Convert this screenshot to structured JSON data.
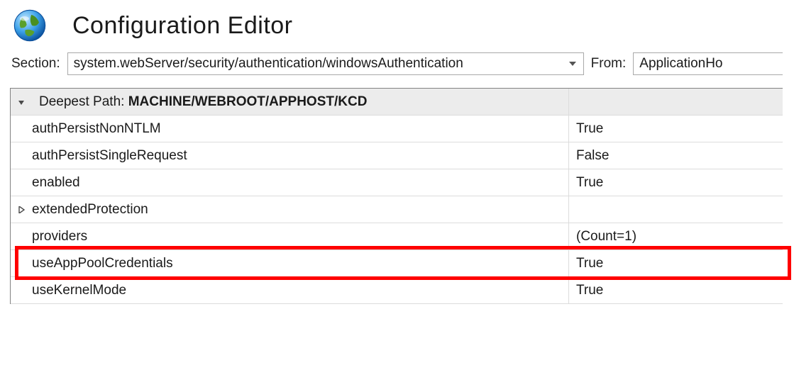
{
  "header": {
    "title": "Configuration Editor"
  },
  "sectionBar": {
    "sectionLabel": "Section:",
    "sectionPath": "system.webServer/security/authentication/windowsAuthentication",
    "fromLabel": "From:",
    "fromValue": "ApplicationHo"
  },
  "grid": {
    "headerPrefix": "Deepest Path: ",
    "headerPath": "MACHINE/WEBROOT/APPHOST/KCD",
    "rows": [
      {
        "name": "authPersistNonNTLM",
        "value": "True",
        "expander": ""
      },
      {
        "name": "authPersistSingleRequest",
        "value": "False",
        "expander": ""
      },
      {
        "name": "enabled",
        "value": "True",
        "expander": ""
      },
      {
        "name": "extendedProtection",
        "value": "",
        "expander": "right"
      },
      {
        "name": "providers",
        "value": "(Count=1)",
        "expander": ""
      },
      {
        "name": "useAppPoolCredentials",
        "value": "True",
        "expander": ""
      },
      {
        "name": "useKernelMode",
        "value": "True",
        "expander": ""
      }
    ],
    "highlightRowIndex": 5
  },
  "style": {
    "headerBg": "#ececec",
    "gridBorder": "#828282",
    "rowBorder": "#dcdcdc",
    "highlightColor": "#ff0000",
    "fontSizeTitle": 34,
    "fontSizeBody": 19
  }
}
